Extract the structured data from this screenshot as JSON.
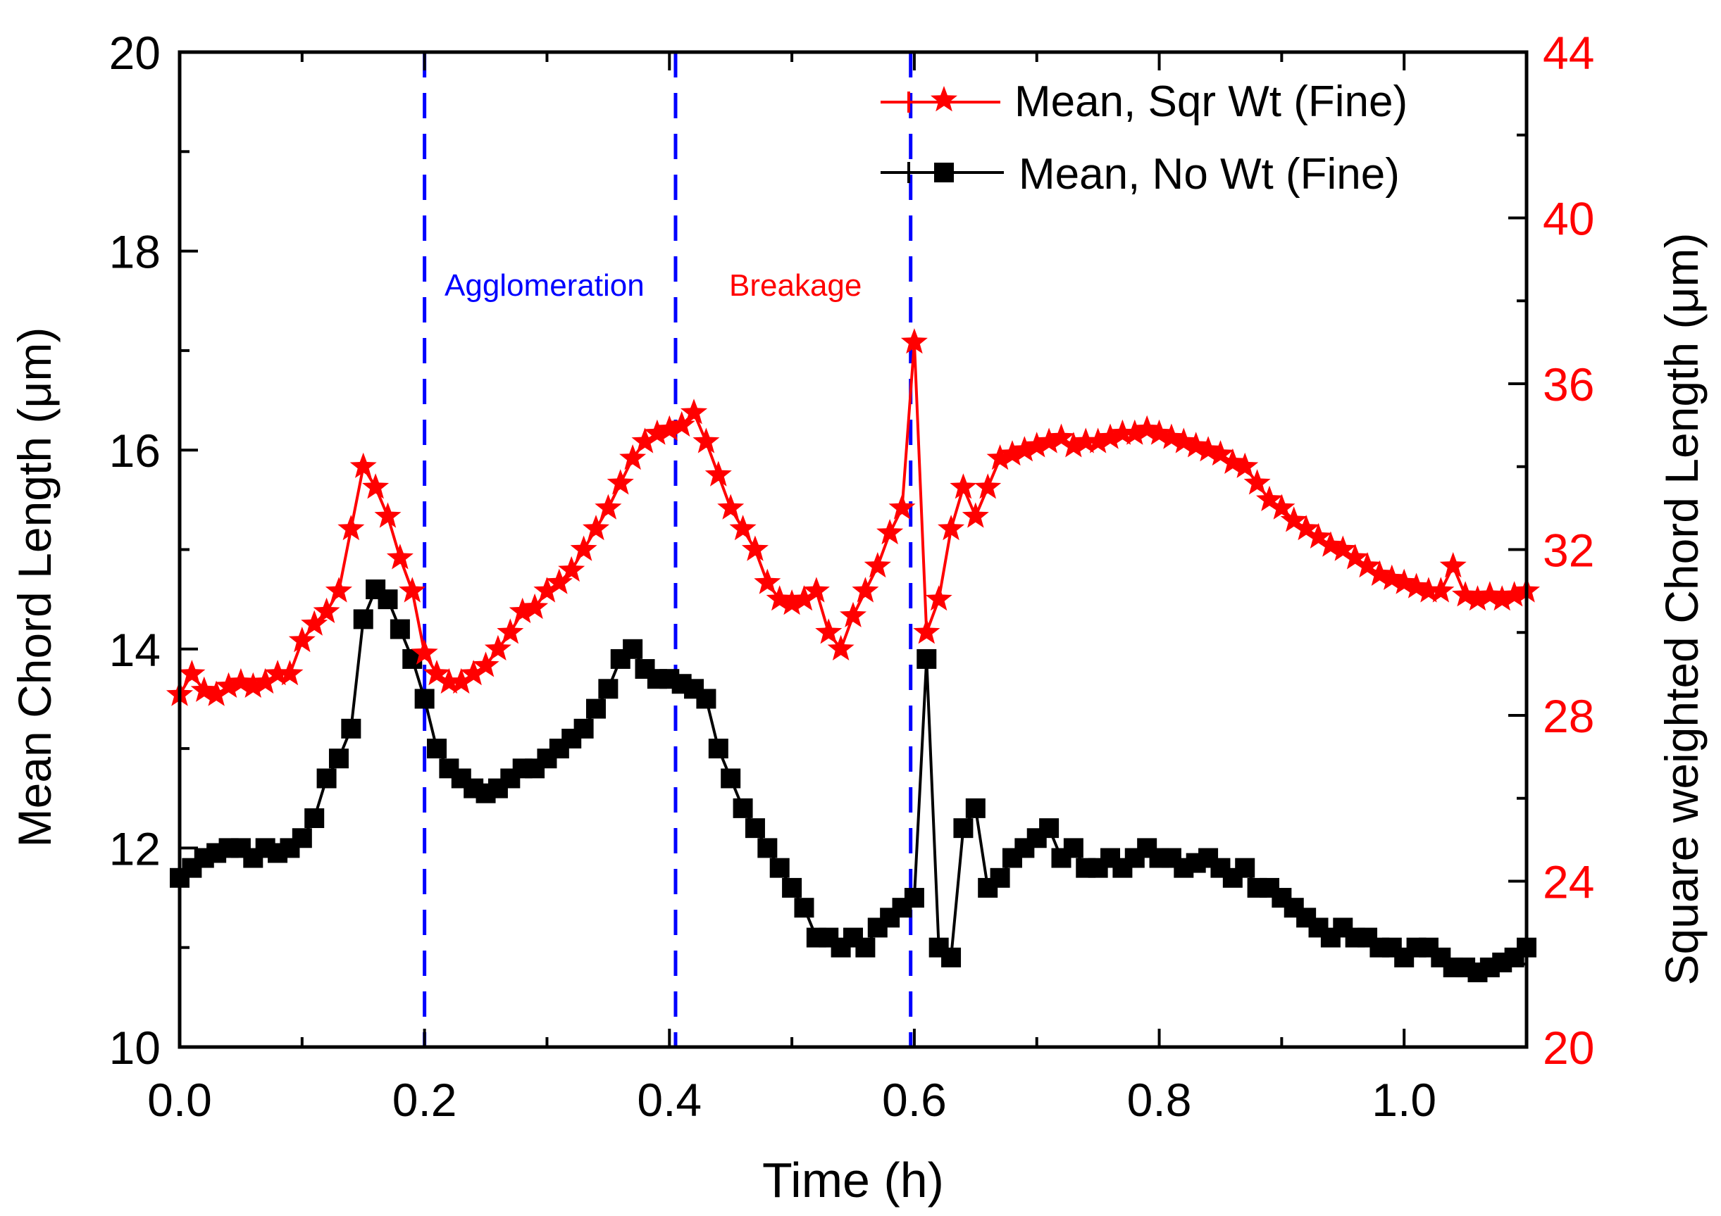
{
  "chart_data": {
    "type": "scatter",
    "xlabel": "Time (h)",
    "ylabel_left": "Mean Chord Length (μm)",
    "ylabel_right": "Square weighted Chord Length (μm)",
    "xlim": [
      0,
      1.1
    ],
    "ylim_left": [
      10,
      20
    ],
    "ylim_right": [
      20,
      44
    ],
    "x_ticks": [
      "0.0",
      "0.2",
      "0.4",
      "0.6",
      "0.8",
      "1.0"
    ],
    "x_tick_values": [
      0,
      0.2,
      0.4,
      0.6,
      0.8,
      1.0
    ],
    "y_left_ticks": [
      "10",
      "12",
      "14",
      "16",
      "18",
      "20"
    ],
    "y_left_tick_values": [
      10,
      12,
      14,
      16,
      18,
      20
    ],
    "y_right_ticks": [
      "20",
      "24",
      "28",
      "32",
      "36",
      "40",
      "44"
    ],
    "y_right_tick_values": [
      20,
      24,
      28,
      32,
      36,
      40,
      44
    ],
    "grid": false,
    "legend_position": "top-right",
    "x_start": 0,
    "x_step": 0.01,
    "series": [
      {
        "name": "Mean, Sqr Wt (Fine)",
        "axis": "right",
        "marker": "star",
        "color": "#ff0000",
        "values": [
          28.5,
          29.0,
          28.6,
          28.5,
          28.7,
          28.8,
          28.7,
          28.8,
          29.0,
          29.0,
          29.8,
          30.2,
          30.5,
          31.0,
          32.5,
          34.0,
          33.5,
          32.8,
          31.8,
          31.0,
          29.5,
          29.0,
          28.8,
          28.8,
          29.0,
          29.2,
          29.6,
          30.0,
          30.5,
          30.6,
          31.0,
          31.2,
          31.5,
          32.0,
          32.5,
          33.0,
          33.6,
          34.2,
          34.6,
          34.8,
          34.9,
          35.0,
          35.3,
          34.6,
          33.8,
          33.0,
          32.5,
          32.0,
          31.2,
          30.8,
          30.7,
          30.8,
          31.0,
          30.0,
          29.6,
          30.4,
          31.0,
          31.6,
          32.4,
          33.0,
          37.0,
          30.0,
          30.8,
          32.5,
          33.5,
          32.8,
          33.5,
          34.2,
          34.3,
          34.4,
          34.5,
          34.6,
          34.7,
          34.5,
          34.6,
          34.6,
          34.7,
          34.8,
          34.8,
          34.9,
          34.8,
          34.7,
          34.6,
          34.5,
          34.4,
          34.3,
          34.1,
          34.0,
          33.6,
          33.2,
          33.0,
          32.7,
          32.5,
          32.3,
          32.1,
          32.0,
          31.8,
          31.6,
          31.4,
          31.3,
          31.2,
          31.1,
          31.0,
          31.0,
          31.6,
          30.9,
          30.8,
          30.9,
          30.8,
          30.9,
          31.0
        ]
      },
      {
        "name": "Mean, No Wt (Fine)",
        "axis": "left",
        "marker": "square",
        "color": "#000000",
        "values": [
          11.7,
          11.8,
          11.9,
          11.95,
          12.0,
          12.0,
          11.9,
          12.0,
          11.95,
          12.0,
          12.1,
          12.3,
          12.7,
          12.9,
          13.2,
          14.3,
          14.6,
          14.5,
          14.2,
          13.9,
          13.5,
          13.0,
          12.8,
          12.7,
          12.6,
          12.55,
          12.6,
          12.7,
          12.8,
          12.8,
          12.9,
          13.0,
          13.1,
          13.2,
          13.4,
          13.6,
          13.9,
          14.0,
          13.8,
          13.7,
          13.7,
          13.65,
          13.6,
          13.5,
          13.0,
          12.7,
          12.4,
          12.2,
          12.0,
          11.8,
          11.6,
          11.4,
          11.1,
          11.1,
          11.0,
          11.1,
          11.0,
          11.2,
          11.3,
          11.4,
          11.5,
          13.9,
          11.0,
          10.9,
          12.2,
          12.4,
          11.6,
          11.7,
          11.9,
          12.0,
          12.1,
          12.2,
          11.9,
          12.0,
          11.8,
          11.8,
          11.9,
          11.8,
          11.9,
          12.0,
          11.9,
          11.9,
          11.8,
          11.85,
          11.9,
          11.8,
          11.7,
          11.8,
          11.6,
          11.6,
          11.5,
          11.4,
          11.3,
          11.2,
          11.1,
          11.2,
          11.1,
          11.1,
          11.0,
          11.0,
          10.9,
          11.0,
          11.0,
          10.9,
          10.8,
          10.8,
          10.75,
          10.8,
          10.85,
          10.9,
          11.0
        ]
      }
    ],
    "vlines": [
      0.2,
      0.405,
      0.597
    ],
    "vline_color": "#0000ff",
    "annotations": [
      {
        "text": "Agglomeration",
        "color": "#0000ff"
      },
      {
        "text": "Breakage",
        "color": "#ff0000"
      }
    ]
  }
}
